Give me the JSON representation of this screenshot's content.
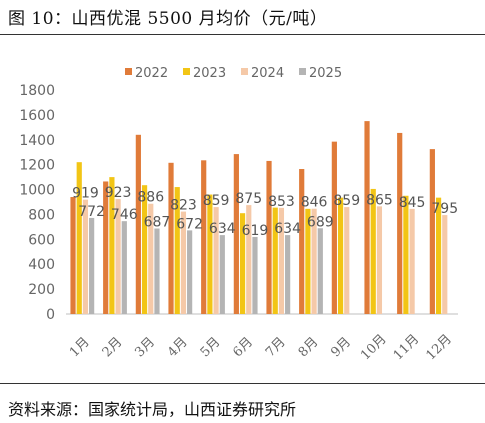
{
  "title": "图 10：山西优混 5500 月均价（元/吨）",
  "source": "资料来源：国家统计局，山西证券研究所",
  "chart_data": {
    "type": "bar",
    "categories": [
      "1月",
      "2月",
      "3月",
      "4月",
      "5月",
      "6月",
      "7月",
      "8月",
      "9月",
      "10月",
      "11月",
      "12月"
    ],
    "ylim": [
      0,
      1800
    ],
    "yticks": [
      0,
      200,
      400,
      600,
      800,
      1000,
      1200,
      1400,
      1600,
      1800
    ],
    "grid": false,
    "legend": "top",
    "series": [
      {
        "name": "2022",
        "color": "#E07B39",
        "values": [
          940,
          1065,
          1440,
          1215,
          1235,
          1285,
          1230,
          1165,
          1385,
          1550,
          1455,
          1325
        ]
      },
      {
        "name": "2023",
        "color": "#F2C515",
        "values": [
          1220,
          1100,
          1035,
          1020,
          960,
          810,
          855,
          845,
          935,
          1005,
          950,
          935
        ]
      },
      {
        "name": "2024",
        "color": "#F5C9A8",
        "values": [
          919,
          923,
          886,
          823,
          859,
          875,
          853,
          846,
          859,
          865,
          845,
          795
        ]
      },
      {
        "name": "2025",
        "color": "#B4B4B4",
        "values": [
          772,
          746,
          687,
          672,
          634,
          619,
          634,
          689,
          null,
          null,
          null,
          null
        ]
      }
    ],
    "data_labels": [
      {
        "series": "2024",
        "values": [
          "919",
          "923",
          "886",
          "823",
          "859",
          "875",
          "853",
          "846",
          "859",
          "865",
          "845",
          "795"
        ]
      },
      {
        "series": "2025",
        "values": [
          "772",
          "746",
          "687",
          "672",
          "634",
          "619",
          "634",
          "689"
        ]
      }
    ]
  }
}
